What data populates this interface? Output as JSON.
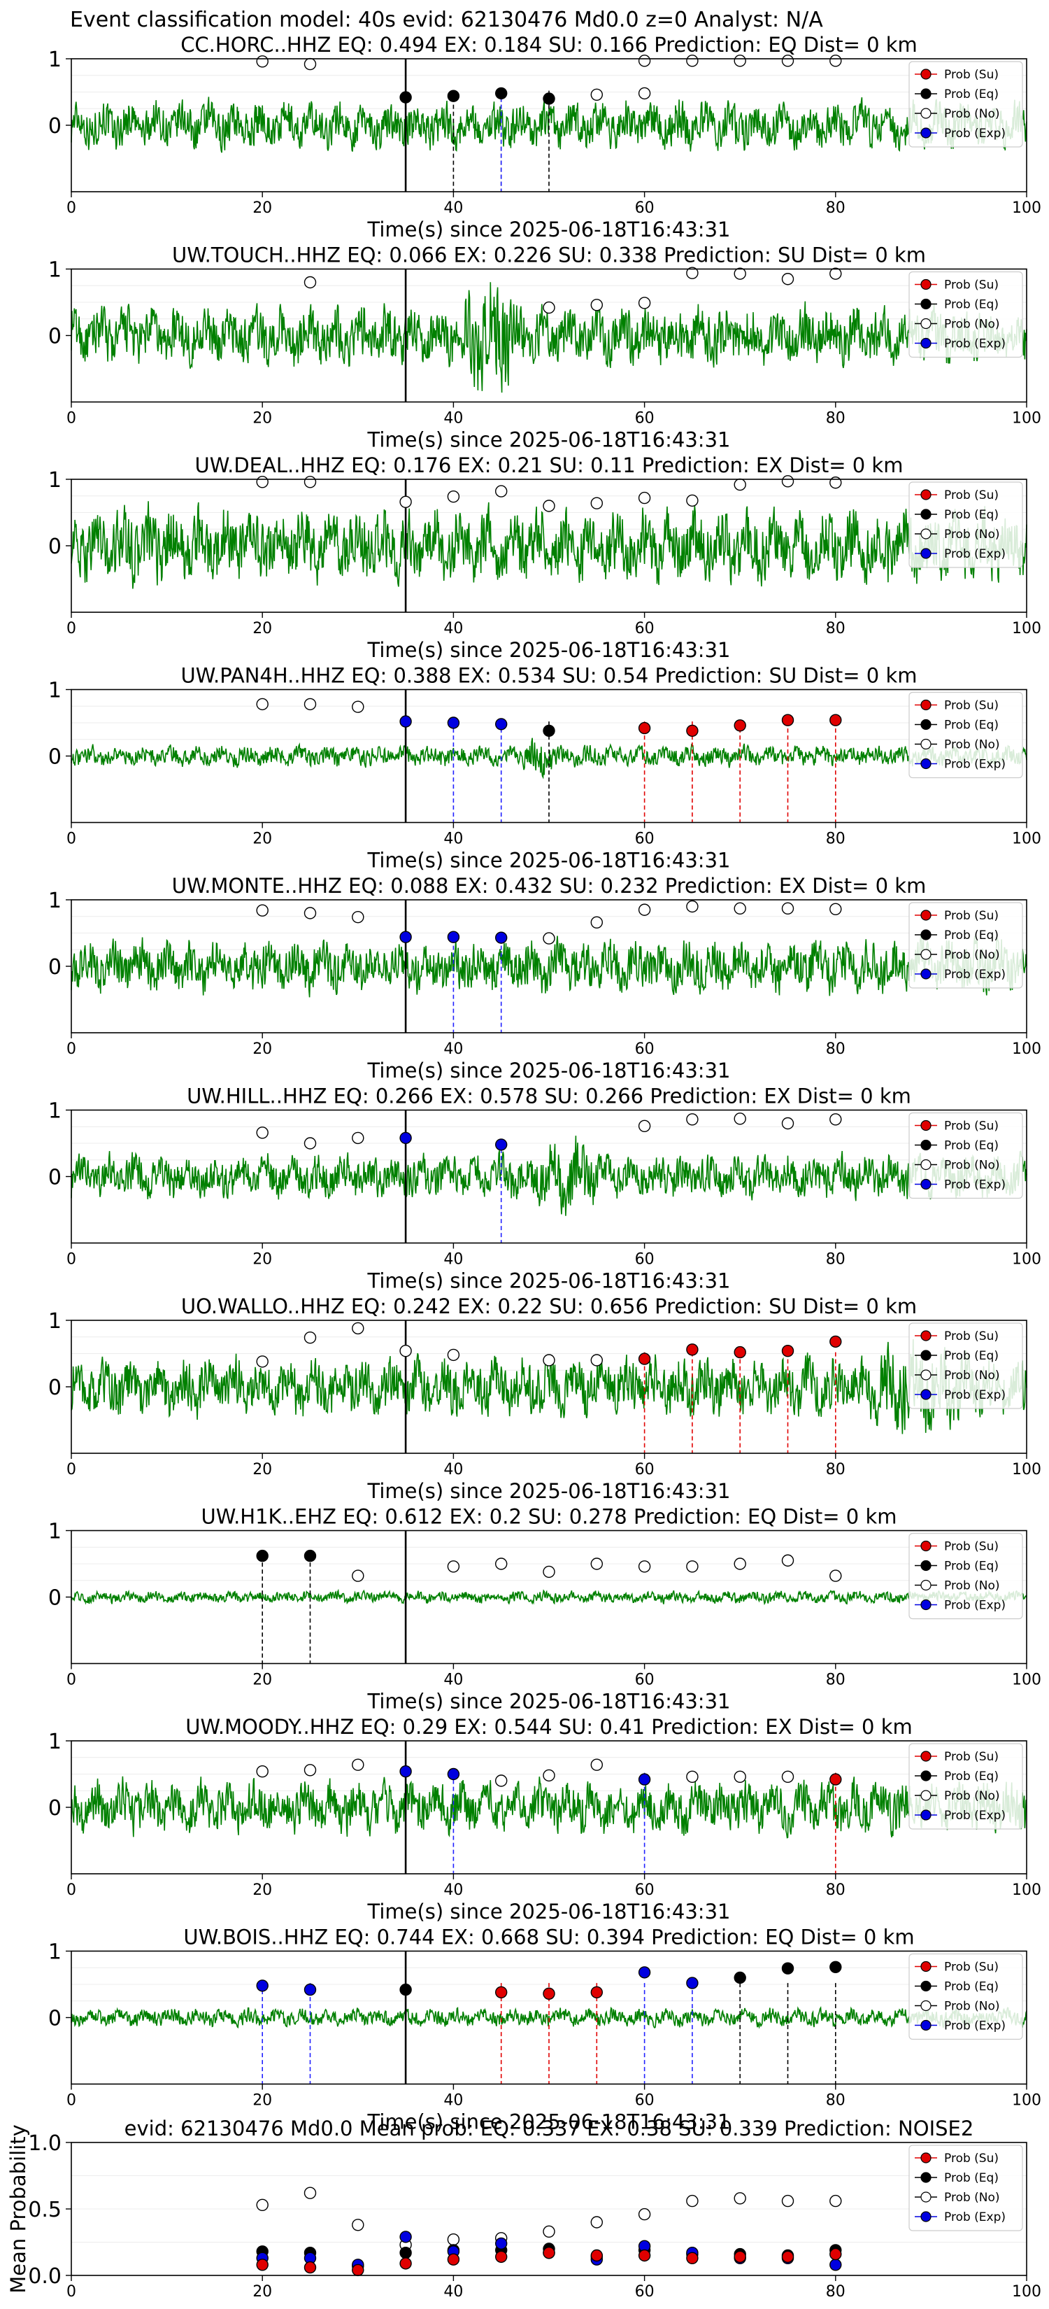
{
  "figure": {
    "suptitle": "Event classification model: 40s evid: 62130476 Md0.0 z=0 Analyst: N/A"
  },
  "legend_entries": [
    {
      "key": "su",
      "label": "Prob (Su)",
      "color": "#e00000",
      "fill": true
    },
    {
      "key": "eq",
      "label": "Prob (Eq)",
      "color": "#000000",
      "fill": true
    },
    {
      "key": "no",
      "label": "Prob (No)",
      "color": "#000000",
      "fill": false
    },
    {
      "key": "ex",
      "label": "Prob (Exp)",
      "color": "#0000e0",
      "fill": true
    }
  ],
  "colors": {
    "trace": "#008000",
    "su": "#e00000",
    "eq": "#000000",
    "ex": "#2020ff",
    "no": "#000000",
    "onset": "#000000"
  },
  "chart_data": [
    {
      "type": "line",
      "panel": "station",
      "title": "CC.HORC..HHZ   EQ: 0.494  EX: 0.184  SU: 0.166   Prediction: EQ    Dist= 0 km",
      "xlabel": "Time(s) since 2025-06-18T16:43:31",
      "ylabel": "",
      "xlim": [
        0,
        100
      ],
      "ylim": [
        -1,
        1
      ],
      "xticks": [
        "0",
        "20",
        "40",
        "60",
        "80",
        "100"
      ],
      "yticks": [
        "0",
        "1"
      ],
      "onset_s": 35,
      "amplitude": 0.32,
      "burst": null,
      "no": [
        [
          20,
          0.96
        ],
        [
          25,
          0.92
        ],
        [
          60,
          0.97
        ],
        [
          65,
          0.97
        ],
        [
          70,
          0.97
        ],
        [
          75,
          0.97
        ],
        [
          80,
          0.97
        ]
      ],
      "eq": [
        [
          35,
          0.42
        ],
        [
          40,
          0.44
        ],
        [
          45,
          0.48
        ],
        [
          50,
          0.4
        ],
        [
          55,
          0.46
        ],
        [
          60,
          0.48
        ]
      ],
      "su": [],
      "ex": [],
      "eq_fill": [
        35,
        40,
        45,
        50
      ],
      "eq_lines": [
        40,
        45,
        50
      ],
      "ex_lines": [
        45
      ],
      "su_lines": []
    },
    {
      "type": "line",
      "panel": "station",
      "title": "UW.TOUCH..HHZ   EQ: 0.066  EX: 0.226  SU: 0.338   Prediction: SU    Dist= 0 km",
      "xlabel": "Time(s) since 2025-06-18T16:43:31",
      "ylabel": "",
      "xlim": [
        0,
        100
      ],
      "ylim": [
        -1,
        1
      ],
      "xticks": [
        "0",
        "20",
        "40",
        "60",
        "80",
        "100"
      ],
      "yticks": [
        "0",
        "1"
      ],
      "onset_s": 35,
      "amplitude": 0.4,
      "burst": [
        40,
        48,
        2.2
      ],
      "no": [
        [
          25,
          0.8
        ],
        [
          50,
          0.42
        ],
        [
          55,
          0.46
        ],
        [
          60,
          0.49
        ],
        [
          65,
          0.94
        ],
        [
          70,
          0.93
        ],
        [
          75,
          0.85
        ],
        [
          80,
          0.93
        ]
      ],
      "eq": [],
      "su": [],
      "ex": [],
      "eq_fill": [],
      "eq_lines": [],
      "ex_lines": [],
      "su_lines": []
    },
    {
      "type": "line",
      "panel": "station",
      "title": "UW.DEAL..HHZ   EQ: 0.176  EX: 0.21  SU: 0.11   Prediction: EX    Dist= 0 km",
      "xlabel": "Time(s) since 2025-06-18T16:43:31",
      "ylabel": "",
      "xlim": [
        0,
        100
      ],
      "ylim": [
        -1,
        1
      ],
      "xticks": [
        "0",
        "20",
        "40",
        "60",
        "80",
        "100"
      ],
      "yticks": [
        "0",
        "1"
      ],
      "onset_s": 35,
      "amplitude": 0.5,
      "burst": null,
      "no": [
        [
          20,
          0.96
        ],
        [
          25,
          0.96
        ],
        [
          35,
          0.66
        ],
        [
          40,
          0.74
        ],
        [
          45,
          0.82
        ],
        [
          50,
          0.6
        ],
        [
          55,
          0.64
        ],
        [
          60,
          0.72
        ],
        [
          65,
          0.68
        ],
        [
          70,
          0.92
        ],
        [
          75,
          0.97
        ],
        [
          80,
          0.95
        ]
      ],
      "eq": [],
      "su": [],
      "ex": [],
      "eq_fill": [],
      "eq_lines": [],
      "ex_lines": [],
      "su_lines": []
    },
    {
      "type": "line",
      "panel": "station",
      "title": "UW.PAN4H..HHZ   EQ: 0.388  EX: 0.534  SU: 0.54   Prediction: SU    Dist= 0 km",
      "xlabel": "Time(s) since 2025-06-18T16:43:31",
      "ylabel": "",
      "xlim": [
        0,
        100
      ],
      "ylim": [
        -1,
        1
      ],
      "xticks": [
        "0",
        "20",
        "40",
        "60",
        "80",
        "100"
      ],
      "yticks": [
        "0",
        "1"
      ],
      "onset_s": 35,
      "amplitude": 0.14,
      "burst": [
        47,
        51,
        2.8
      ],
      "no": [
        [
          20,
          0.78
        ],
        [
          25,
          0.78
        ],
        [
          30,
          0.74
        ]
      ],
      "eq": [
        [
          50,
          0.38
        ]
      ],
      "su": [
        [
          60,
          0.42
        ],
        [
          65,
          0.38
        ],
        [
          70,
          0.46
        ],
        [
          75,
          0.54
        ],
        [
          80,
          0.54
        ]
      ],
      "ex": [
        [
          35,
          0.52
        ],
        [
          40,
          0.5
        ],
        [
          45,
          0.48
        ]
      ],
      "eq_fill": [],
      "eq_lines": [
        50
      ],
      "ex_lines": [
        40,
        45
      ],
      "su_lines": [
        60,
        65,
        70,
        75,
        80
      ]
    },
    {
      "type": "line",
      "panel": "station",
      "title": "UW.MONTE..HHZ   EQ: 0.088  EX: 0.432  SU: 0.232   Prediction: EX    Dist= 0 km",
      "xlabel": "Time(s) since 2025-06-18T16:43:31",
      "ylabel": "",
      "xlim": [
        0,
        100
      ],
      "ylim": [
        -1,
        1
      ],
      "xticks": [
        "0",
        "20",
        "40",
        "60",
        "80",
        "100"
      ],
      "yticks": [
        "0",
        "1"
      ],
      "onset_s": 35,
      "amplitude": 0.35,
      "burst": null,
      "no": [
        [
          20,
          0.84
        ],
        [
          25,
          0.8
        ],
        [
          30,
          0.74
        ],
        [
          50,
          0.42
        ],
        [
          55,
          0.66
        ],
        [
          60,
          0.85
        ],
        [
          65,
          0.9
        ],
        [
          70,
          0.87
        ],
        [
          75,
          0.87
        ],
        [
          80,
          0.86
        ]
      ],
      "eq": [],
      "su": [],
      "ex": [
        [
          35,
          0.44
        ],
        [
          40,
          0.44
        ],
        [
          45,
          0.43
        ]
      ],
      "eq_fill": [],
      "eq_lines": [],
      "ex_lines": [
        40,
        45
      ],
      "su_lines": []
    },
    {
      "type": "line",
      "panel": "station",
      "title": "UW.HILL..HHZ   EQ: 0.266  EX: 0.578  SU: 0.266   Prediction: EX    Dist= 0 km",
      "xlabel": "Time(s) since 2025-06-18T16:43:31",
      "ylabel": "",
      "xlim": [
        0,
        100
      ],
      "ylim": [
        -1,
        1
      ],
      "xticks": [
        "0",
        "20",
        "40",
        "60",
        "80",
        "100"
      ],
      "yticks": [
        "0",
        "1"
      ],
      "onset_s": 35,
      "amplitude": 0.3,
      "burst": [
        48,
        56,
        1.9
      ],
      "no": [
        [
          20,
          0.66
        ],
        [
          25,
          0.5
        ],
        [
          30,
          0.58
        ],
        [
          60,
          0.76
        ],
        [
          65,
          0.86
        ],
        [
          70,
          0.87
        ],
        [
          75,
          0.8
        ],
        [
          80,
          0.86
        ]
      ],
      "eq": [],
      "su": [],
      "ex": [
        [
          35,
          0.58
        ],
        [
          45,
          0.48
        ]
      ],
      "eq_fill": [],
      "eq_lines": [],
      "ex_lines": [
        45
      ],
      "su_lines": []
    },
    {
      "type": "line",
      "panel": "station",
      "title": "UO.WALLO..HHZ   EQ: 0.242  EX: 0.22  SU: 0.656   Prediction: SU    Dist= 0 km",
      "xlabel": "Time(s) since 2025-06-18T16:43:31",
      "ylabel": "",
      "xlim": [
        0,
        100
      ],
      "ylim": [
        -1,
        1
      ],
      "xticks": [
        "0",
        "20",
        "40",
        "60",
        "80",
        "100"
      ],
      "yticks": [
        "0",
        "1"
      ],
      "onset_s": 35,
      "amplitude": 0.4,
      "burst": [
        82,
        95,
        1.8
      ],
      "no": [
        [
          20,
          0.38
        ],
        [
          25,
          0.74
        ],
        [
          30,
          0.88
        ],
        [
          35,
          0.54
        ],
        [
          40,
          0.48
        ],
        [
          50,
          0.4
        ],
        [
          55,
          0.4
        ]
      ],
      "eq": [],
      "su": [
        [
          60,
          0.42
        ],
        [
          65,
          0.56
        ],
        [
          70,
          0.52
        ],
        [
          75,
          0.54
        ],
        [
          80,
          0.68
        ]
      ],
      "ex": [],
      "eq_fill": [],
      "eq_lines": [],
      "ex_lines": [],
      "su_lines": [
        60,
        65,
        70,
        75,
        80
      ]
    },
    {
      "type": "line",
      "panel": "station",
      "title": "UW.H1K..EHZ   EQ: 0.612  EX: 0.2  SU: 0.278   Prediction: EQ    Dist= 0 km",
      "xlabel": "Time(s) since 2025-06-18T16:43:31",
      "ylabel": "",
      "xlim": [
        0,
        100
      ],
      "ylim": [
        -1,
        1
      ],
      "xticks": [
        "0",
        "20",
        "40",
        "60",
        "80",
        "100"
      ],
      "yticks": [
        "0",
        "1"
      ],
      "onset_s": 35,
      "amplitude": 0.08,
      "burst": null,
      "no": [
        [
          30,
          0.32
        ],
        [
          40,
          0.46
        ],
        [
          45,
          0.5
        ],
        [
          50,
          0.38
        ],
        [
          55,
          0.5
        ],
        [
          60,
          0.46
        ],
        [
          65,
          0.46
        ],
        [
          70,
          0.5
        ],
        [
          75,
          0.55
        ],
        [
          80,
          0.32
        ]
      ],
      "eq": [
        [
          20,
          0.62
        ],
        [
          25,
          0.62
        ]
      ],
      "su": [],
      "ex": [],
      "eq_fill": [
        20,
        25
      ],
      "eq_lines": [
        20,
        25
      ],
      "ex_lines": [],
      "su_lines": []
    },
    {
      "type": "line",
      "panel": "station",
      "title": "UW.MOODY..HHZ   EQ: 0.29  EX: 0.544  SU: 0.41   Prediction: EX    Dist= 0 km",
      "xlabel": "Time(s) since 2025-06-18T16:43:31",
      "ylabel": "",
      "xlim": [
        0,
        100
      ],
      "ylim": [
        -1,
        1
      ],
      "xticks": [
        "0",
        "20",
        "40",
        "60",
        "80",
        "100"
      ],
      "yticks": [
        "0",
        "1"
      ],
      "onset_s": 35,
      "amplitude": 0.36,
      "burst": null,
      "no": [
        [
          20,
          0.54
        ],
        [
          25,
          0.56
        ],
        [
          30,
          0.64
        ],
        [
          45,
          0.4
        ],
        [
          50,
          0.48
        ],
        [
          55,
          0.64
        ],
        [
          65,
          0.46
        ],
        [
          70,
          0.46
        ],
        [
          75,
          0.46
        ]
      ],
      "eq": [],
      "su": [
        [
          80,
          0.42
        ]
      ],
      "ex": [
        [
          35,
          0.54
        ],
        [
          40,
          0.5
        ],
        [
          60,
          0.42
        ]
      ],
      "eq_fill": [],
      "eq_lines": [],
      "ex_lines": [
        40,
        60
      ],
      "su_lines": [
        80
      ]
    },
    {
      "type": "line",
      "panel": "station",
      "title": "UW.BOIS..HHZ   EQ: 0.744  EX: 0.668  SU: 0.394   Prediction: EQ    Dist= 0 km",
      "xlabel": "Time(s) since 2025-06-18T16:43:31",
      "ylabel": "",
      "xlim": [
        0,
        100
      ],
      "ylim": [
        -1,
        1
      ],
      "xticks": [
        "0",
        "20",
        "40",
        "60",
        "80",
        "100"
      ],
      "yticks": [
        "0",
        "1"
      ],
      "onset_s": 35,
      "amplitude": 0.12,
      "burst": null,
      "no": [],
      "eq": [
        [
          35,
          0.42
        ],
        [
          70,
          0.6
        ],
        [
          75,
          0.74
        ],
        [
          80,
          0.76
        ]
      ],
      "su": [
        [
          45,
          0.38
        ],
        [
          50,
          0.36
        ],
        [
          55,
          0.38
        ]
      ],
      "ex": [
        [
          20,
          0.48
        ],
        [
          25,
          0.42
        ],
        [
          60,
          0.68
        ],
        [
          65,
          0.52
        ]
      ],
      "eq_fill": [],
      "eq_lines": [
        70,
        75,
        80
      ],
      "ex_lines": [
        20,
        25,
        60,
        65
      ],
      "su_lines": [
        45,
        50,
        55
      ]
    },
    {
      "type": "scatter",
      "panel": "mean",
      "title": "evid: 62130476  Md0.0   Mean prob:   EQ: 0.337  EX: 0.38  SU: 0.339   Prediction: NOISE2",
      "xlabel": "",
      "ylabel": "Mean Probability",
      "xlim": [
        0,
        100
      ],
      "ylim": [
        0,
        1
      ],
      "xticks": [
        "0",
        "20",
        "40",
        "60",
        "80",
        "100"
      ],
      "yticks": [
        "0.0",
        "0.5",
        "1.0"
      ],
      "no": [
        [
          20,
          0.53
        ],
        [
          25,
          0.62
        ],
        [
          30,
          0.38
        ],
        [
          35,
          0.23
        ],
        [
          40,
          0.27
        ],
        [
          45,
          0.28
        ],
        [
          50,
          0.33
        ],
        [
          55,
          0.4
        ],
        [
          60,
          0.46
        ],
        [
          65,
          0.56
        ],
        [
          70,
          0.58
        ],
        [
          75,
          0.56
        ],
        [
          80,
          0.56
        ]
      ],
      "eq": [
        [
          20,
          0.18
        ],
        [
          25,
          0.17
        ],
        [
          30,
          0.07
        ],
        [
          35,
          0.17
        ],
        [
          40,
          0.19
        ],
        [
          45,
          0.19
        ],
        [
          50,
          0.2
        ],
        [
          55,
          0.14
        ],
        [
          60,
          0.19
        ],
        [
          65,
          0.16
        ],
        [
          70,
          0.16
        ],
        [
          75,
          0.15
        ],
        [
          80,
          0.19
        ]
      ],
      "ex": [
        [
          20,
          0.13
        ],
        [
          25,
          0.13
        ],
        [
          30,
          0.08
        ],
        [
          35,
          0.29
        ],
        [
          40,
          0.18
        ],
        [
          45,
          0.24
        ],
        [
          50,
          0.17
        ],
        [
          55,
          0.12
        ],
        [
          60,
          0.22
        ],
        [
          65,
          0.17
        ],
        [
          70,
          0.13
        ],
        [
          75,
          0.13
        ],
        [
          80,
          0.08
        ]
      ],
      "su": [
        [
          20,
          0.08
        ],
        [
          25,
          0.06
        ],
        [
          30,
          0.04
        ],
        [
          35,
          0.09
        ],
        [
          40,
          0.12
        ],
        [
          45,
          0.14
        ],
        [
          50,
          0.17
        ],
        [
          55,
          0.15
        ],
        [
          60,
          0.15
        ],
        [
          65,
          0.13
        ],
        [
          70,
          0.14
        ],
        [
          75,
          0.14
        ],
        [
          80,
          0.16
        ]
      ]
    }
  ]
}
